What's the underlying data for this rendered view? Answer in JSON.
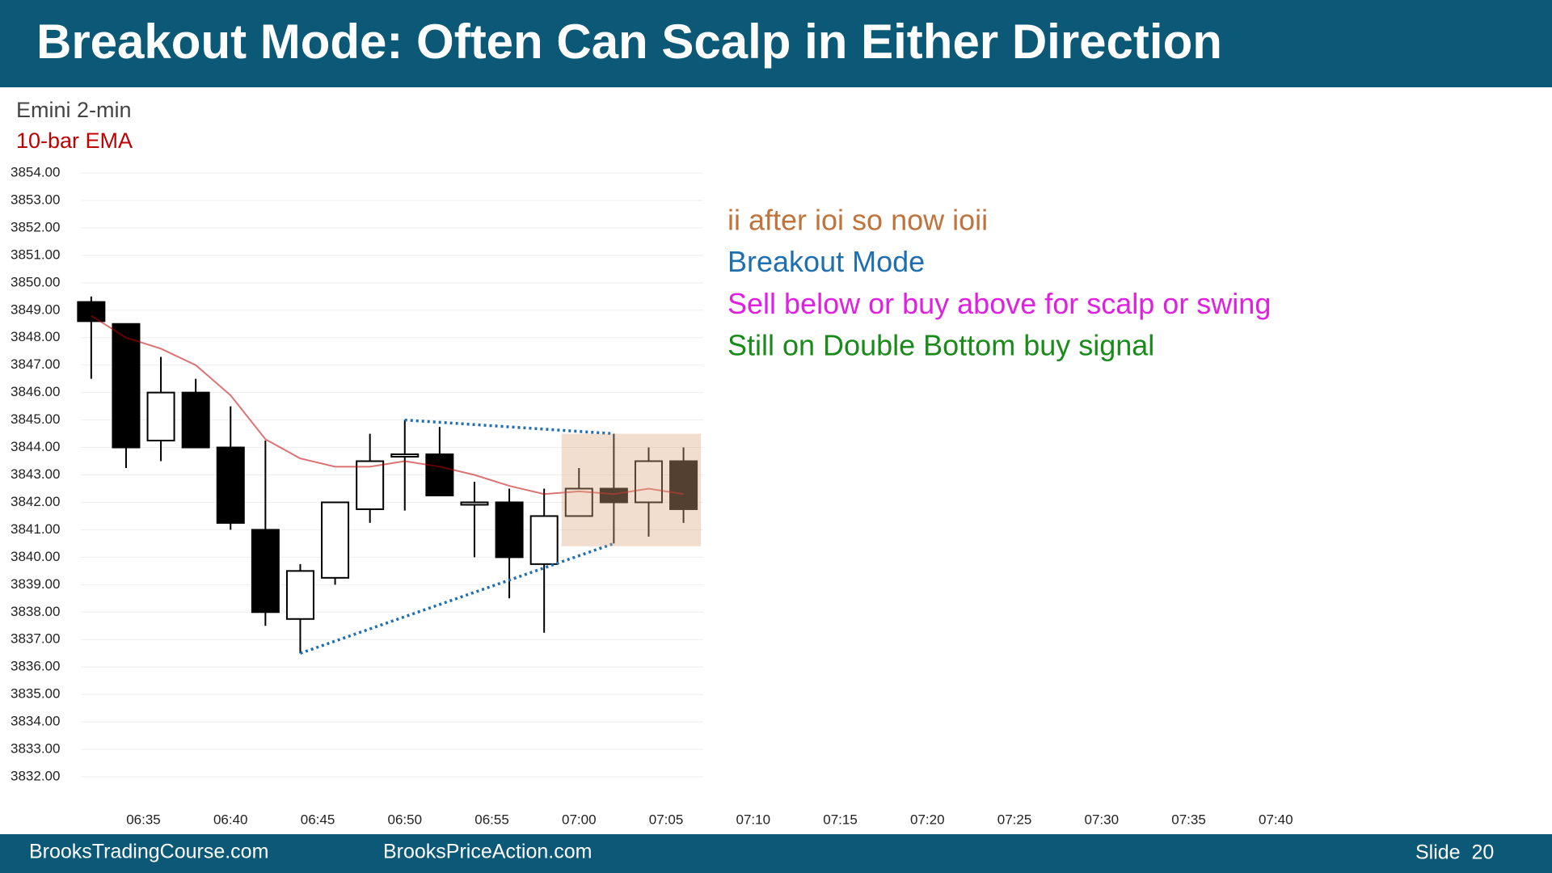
{
  "slide": {
    "title": "Breakout Mode: Often Can Scalp in Either Direction",
    "footer_left": "BrooksTradingCourse.com",
    "footer_center": "BrooksPriceAction.com",
    "slide_number": "Slide  20"
  },
  "chart_data": {
    "type": "candlestick",
    "label": "Emini 2-min",
    "x": [
      "06:32",
      "06:34",
      "06:36",
      "06:38",
      "06:40",
      "06:42",
      "06:44",
      "06:46",
      "06:48",
      "06:50",
      "06:52",
      "06:54",
      "06:56",
      "06:58",
      "07:00",
      "07:02",
      "07:04",
      "07:06"
    ],
    "open": [
      3849.3,
      3848.5,
      3844.25,
      3846.0,
      3844.0,
      3841.0,
      3837.75,
      3839.25,
      3841.75,
      3843.75,
      3843.75,
      3842.0,
      3842.0,
      3839.75,
      3841.5,
      3842.5,
      3842.0,
      3843.5
    ],
    "high": [
      3849.5,
      3848.5,
      3847.3,
      3846.5,
      3845.5,
      3844.25,
      3839.75,
      3842.0,
      3844.5,
      3845.0,
      3844.75,
      3842.75,
      3842.5,
      3842.5,
      3843.25,
      3844.5,
      3844.0,
      3844.0
    ],
    "low": [
      3846.5,
      3843.25,
      3843.5,
      3844.0,
      3841.0,
      3837.5,
      3836.5,
      3839.0,
      3841.25,
      3841.7,
      3842.25,
      3840.0,
      3838.5,
      3837.25,
      3841.5,
      3840.5,
      3840.75,
      3841.25
    ],
    "close": [
      3848.6,
      3844.0,
      3846.0,
      3844.0,
      3841.25,
      3838.0,
      3839.5,
      3842.0,
      3843.5,
      3843.75,
      3842.25,
      3842.0,
      3840.0,
      3841.5,
      3842.5,
      3842.0,
      3843.5,
      3841.75
    ],
    "up_color": "#ffffff",
    "down_color": "#000000",
    "ema": {
      "name": "10-bar EMA",
      "color": "#c00000",
      "values": [
        3848.8,
        3848.0,
        3847.6,
        3847.0,
        3845.9,
        3844.3,
        3843.6,
        3843.3,
        3843.3,
        3843.5,
        3843.3,
        3843.0,
        3842.6,
        3842.3,
        3842.4,
        3842.3,
        3842.5,
        3842.3
      ]
    },
    "trendlines": [
      {
        "color": "#1f6fb0",
        "x": [
          "06:50",
          "07:02"
        ],
        "y": [
          3845.0,
          3844.5
        ]
      },
      {
        "color": "#1f6fb0",
        "x": [
          "06:44",
          "07:02"
        ],
        "y": [
          3836.5,
          3840.5
        ]
      }
    ],
    "highlight": {
      "color": "#d9a77e",
      "x": [
        "06:59",
        "07:07"
      ],
      "y": [
        3840.4,
        3844.5
      ]
    },
    "annotations": [
      {
        "text": "ii after ioi so now ioii",
        "color": "#c0733a"
      },
      {
        "text": "Breakout Mode",
        "color": "#1f6fb0"
      },
      {
        "text": "Sell below or buy above for scalp or swing",
        "color": "#e020e0"
      },
      {
        "text": "Still on Double Bottom buy signal",
        "color": "#1a8a1a"
      }
    ],
    "xlim": [
      "06:31",
      "07:44"
    ],
    "xticks": [
      "06:35",
      "06:40",
      "06:45",
      "06:50",
      "06:55",
      "07:00",
      "07:05",
      "07:10",
      "07:15",
      "07:20",
      "07:25",
      "07:30",
      "07:35",
      "07:40"
    ],
    "ylim": [
      3832,
      3854
    ],
    "yticks": [
      {
        "value": 3854,
        "label": "3854.00"
      },
      {
        "value": 3853,
        "label": "3853.00"
      },
      {
        "value": 3852,
        "label": "3852.00"
      },
      {
        "value": 3851,
        "label": "3851.00"
      },
      {
        "value": 3850,
        "label": "3850.00"
      },
      {
        "value": 3849,
        "label": "3849.00"
      },
      {
        "value": 3848,
        "label": "3848.00"
      },
      {
        "value": 3847,
        "label": "3847.00"
      },
      {
        "value": 3846,
        "label": "3846.00"
      },
      {
        "value": 3845,
        "label": "3845.00"
      },
      {
        "value": 3844,
        "label": "3844.00"
      },
      {
        "value": 3843,
        "label": "3843.00"
      },
      {
        "value": 3842,
        "label": "3842.00"
      },
      {
        "value": 3841,
        "label": "3841.00"
      },
      {
        "value": 3840,
        "label": "3840.00"
      },
      {
        "value": 3839,
        "label": "3839.00"
      },
      {
        "value": 3838,
        "label": "3838.00"
      },
      {
        "value": 3837,
        "label": "3837.00"
      },
      {
        "value": 3836,
        "label": "3836.00"
      },
      {
        "value": 3835,
        "label": "3835.00"
      },
      {
        "value": 3834,
        "label": "3834.00"
      },
      {
        "value": 3833,
        "label": "3833.00"
      },
      {
        "value": 3832,
        "label": "3832.00"
      }
    ],
    "grid": true
  }
}
